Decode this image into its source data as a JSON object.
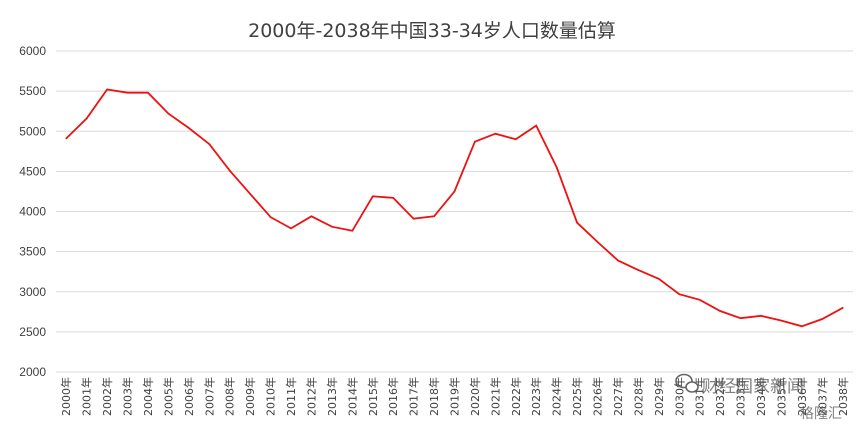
{
  "chart_data": {
    "type": "line",
    "title": "2000年-2038年中国33-34岁人口数量估算",
    "xlabel": "",
    "ylabel": "",
    "ylim": [
      2000,
      6000
    ],
    "yticks": [
      2000,
      2500,
      3000,
      3500,
      4000,
      4500,
      5000,
      5500,
      6000
    ],
    "grid": true,
    "legend": "none",
    "categories": [
      "2000年",
      "2001年",
      "2002年",
      "2003年",
      "2004年",
      "2005年",
      "2006年",
      "2007年",
      "2008年",
      "2009年",
      "2010年",
      "2011年",
      "2012年",
      "2013年",
      "2014年",
      "2015年",
      "2016年",
      "2017年",
      "2018年",
      "2019年",
      "2020年",
      "2021年",
      "2022年",
      "2023年",
      "2024年",
      "2025年",
      "2026年",
      "2027年",
      "2028年",
      "2029年",
      "2030年",
      "2031年",
      "2032年",
      "2033年",
      "2034年",
      "2035年",
      "2036年",
      "2037年",
      "2038年"
    ],
    "series": [
      {
        "color": "#ee1111",
        "values": [
          4910,
          5160,
          5520,
          5480,
          5480,
          5220,
          5040,
          4840,
          4510,
          4220,
          3930,
          3790,
          3940,
          3810,
          3760,
          4190,
          4170,
          3910,
          3940,
          4250,
          4870,
          4970,
          4900,
          5070,
          4550,
          3860,
          3620,
          3390,
          3270,
          3160,
          2970,
          2900,
          2760,
          2670,
          2700,
          2640,
          2570,
          2660,
          2800
        ]
      }
    ]
  },
  "watermark": {
    "text": "财经国家新闻",
    "sub": "格隆汇",
    "icon": "wechat-icon"
  }
}
